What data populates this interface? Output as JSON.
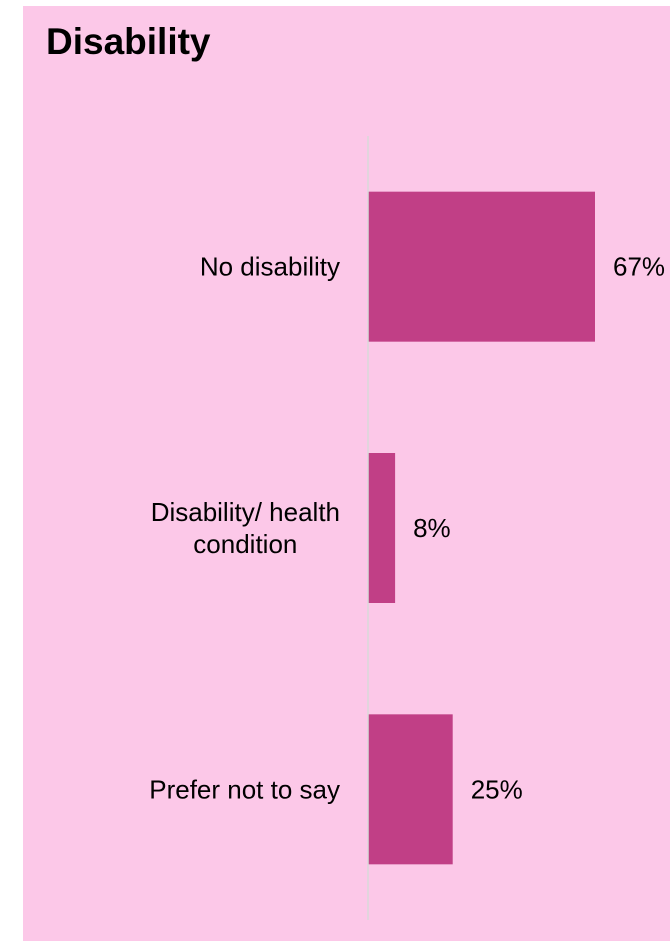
{
  "chart_data": {
    "type": "bar",
    "orientation": "horizontal",
    "title": "Disability",
    "categories": [
      [
        "No disability"
      ],
      [
        "Disability/ health",
        "condition"
      ],
      [
        "Prefer not to say"
      ]
    ],
    "values": [
      67,
      8,
      25
    ],
    "value_labels": [
      "67%",
      "8%",
      "25%"
    ],
    "unit": "%",
    "xlim": [
      0,
      100
    ],
    "grid": false,
    "legend": "none",
    "colors": {
      "background": "#fcc8e8",
      "bar": "#c13f86",
      "axis": "#d9d9d9"
    }
  }
}
